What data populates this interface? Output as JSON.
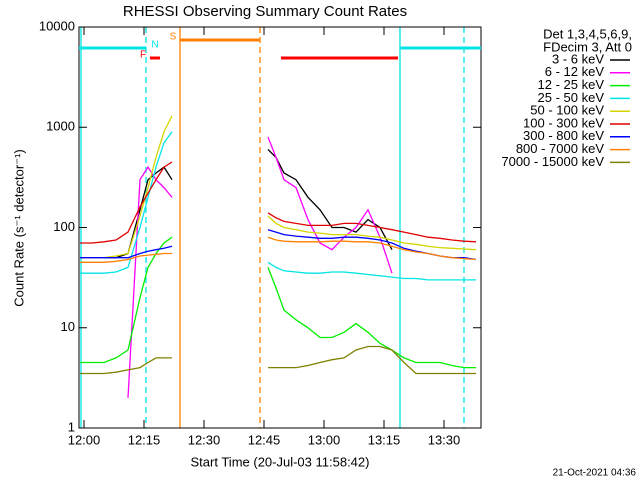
{
  "chart_data": {
    "type": "line",
    "title": "RHESSI Observing Summary Count Rates",
    "xlabel": "Start Time (20-Jul-03 11:58:42)",
    "ylabel": "Count Rate (s⁻¹ detector⁻¹)",
    "legend_header": [
      "Det 1,3,4,5,6,9,",
      "FDecim 3, Att 0"
    ],
    "footer": "21-Oct-2021 04:36",
    "log_y": true,
    "xlim": [
      -1.25,
      99.25
    ],
    "ylim": [
      1,
      10000
    ],
    "xticks": [
      {
        "value": 0,
        "label": "12:00"
      },
      {
        "value": 15,
        "label": "12:15"
      },
      {
        "value": 30,
        "label": "12:30"
      },
      {
        "value": 45,
        "label": "12:45"
      },
      {
        "value": 60,
        "label": "13:00"
      },
      {
        "value": 75,
        "label": "13:15"
      },
      {
        "value": 90,
        "label": "13:30"
      }
    ],
    "yticks": [
      1,
      10,
      100,
      1000,
      10000
    ],
    "x": [
      -1,
      2,
      5,
      8,
      11,
      14,
      16,
      18,
      20,
      22,
      34,
      46,
      48,
      50,
      53,
      56,
      59,
      62,
      65,
      68,
      71,
      74,
      77,
      80,
      83,
      86,
      89,
      92,
      95,
      98
    ],
    "series": [
      {
        "name": "3 - 6 keV",
        "color": "#000000",
        "values": [
          50,
          50,
          50,
          50,
          55,
          150,
          300,
          350,
          400,
          300,
          null,
          600,
          500,
          350,
          300,
          200,
          150,
          100,
          100,
          90,
          120,
          100,
          60,
          null,
          null,
          null,
          null,
          null,
          null,
          null
        ]
      },
      {
        "name": "6 - 12 keV",
        "color": "#ff00ff",
        "values": [
          null,
          null,
          null,
          null,
          2,
          300,
          400,
          300,
          250,
          200,
          null,
          800,
          500,
          300,
          250,
          120,
          70,
          60,
          80,
          100,
          150,
          80,
          35,
          null,
          null,
          null,
          null,
          null,
          null,
          null
        ]
      },
      {
        "name": "12 - 25 keV",
        "color": "#00ee00",
        "values": [
          4.5,
          4.5,
          4.5,
          5,
          6,
          20,
          40,
          55,
          70,
          80,
          null,
          40,
          25,
          15,
          12,
          10,
          8,
          8,
          9,
          11,
          9,
          7,
          6,
          5,
          4.5,
          4.5,
          4.5,
          4.2,
          4,
          4
        ]
      },
      {
        "name": "25 - 50 keV",
        "color": "#00e5e5",
        "values": [
          35,
          35,
          35,
          36,
          40,
          100,
          200,
          400,
          700,
          900,
          null,
          45,
          40,
          37,
          36,
          35,
          35,
          36,
          36,
          35,
          34,
          33,
          32,
          31,
          31,
          30,
          30,
          30,
          30,
          30
        ]
      },
      {
        "name": "50 - 100 keV",
        "color": "#d4d400",
        "values": [
          50,
          50,
          50,
          52,
          55,
          130,
          250,
          500,
          900,
          1300,
          null,
          130,
          110,
          100,
          95,
          90,
          88,
          85,
          85,
          85,
          82,
          80,
          75,
          70,
          68,
          65,
          63,
          62,
          61,
          60
        ]
      },
      {
        "name": "100 - 300 keV",
        "color": "#e00000",
        "values": [
          70,
          70,
          72,
          75,
          90,
          160,
          220,
          300,
          400,
          450,
          null,
          140,
          125,
          115,
          110,
          105,
          105,
          105,
          110,
          110,
          105,
          100,
          95,
          90,
          85,
          80,
          78,
          75,
          73,
          72
        ]
      },
      {
        "name": "300 - 800 keV",
        "color": "#0000ff",
        "values": [
          50,
          50,
          50,
          50,
          50,
          55,
          58,
          60,
          62,
          65,
          null,
          95,
          90,
          85,
          82,
          80,
          78,
          78,
          80,
          80,
          78,
          75,
          70,
          62,
          58,
          55,
          52,
          50,
          50,
          48
        ]
      },
      {
        "name": "800 - 7000 keV",
        "color": "#ff8000",
        "values": [
          45,
          45,
          45,
          46,
          48,
          52,
          53,
          54,
          55,
          55,
          null,
          80,
          75,
          73,
          72,
          72,
          72,
          73,
          73,
          72,
          72,
          70,
          65,
          60,
          57,
          55,
          52,
          50,
          49,
          48
        ]
      },
      {
        "name": "7000 - 15000 keV",
        "color": "#808000",
        "values": [
          3.5,
          3.5,
          3.5,
          3.6,
          3.8,
          4,
          4.5,
          5,
          5,
          5,
          null,
          4,
          4,
          4,
          4,
          4.2,
          4.5,
          4.8,
          5,
          6,
          6.5,
          6.5,
          6,
          4.5,
          3.5,
          3.5,
          3.5,
          3.5,
          3.5,
          3.5
        ]
      }
    ],
    "flags": [
      {
        "label": "F",
        "color": "#ff0000",
        "intervals": [
          [
            16.5,
            19
          ],
          [
            49.25,
            78.5
          ]
        ]
      },
      {
        "label": "N",
        "color": "#00e5e5",
        "intervals": [
          [
            -1.25,
            15.5
          ],
          [
            79,
            99.25
          ]
        ]
      },
      {
        "label": "S",
        "color": "#ff8000",
        "intervals": [
          [
            24,
            44
          ]
        ]
      }
    ],
    "vlines": [
      {
        "x": -0.75,
        "color": "#00e5e5",
        "dashed": false
      },
      {
        "x": 15.5,
        "color": "#00e5e5",
        "dashed": true
      },
      {
        "x": 24,
        "color": "#ff8000",
        "dashed": false
      },
      {
        "x": 44,
        "color": "#ff8000",
        "dashed": true
      },
      {
        "x": 79,
        "color": "#00e5e5",
        "dashed": false
      },
      {
        "x": 95,
        "color": "#00e5e5",
        "dashed": true
      }
    ]
  }
}
